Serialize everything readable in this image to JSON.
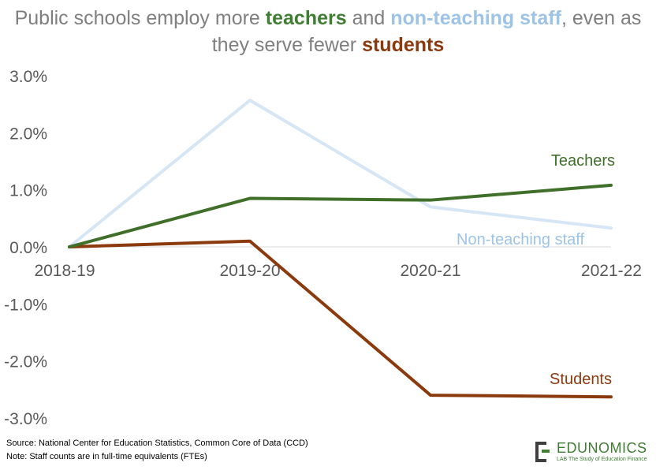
{
  "chart_data": {
    "type": "line",
    "title_parts": [
      {
        "text": "Public schools employ more ",
        "style": "plain"
      },
      {
        "text": "teachers",
        "style": "teal"
      },
      {
        "text": " and ",
        "style": "plain"
      },
      {
        "text": "non-teaching staff",
        "style": "blue"
      },
      {
        "text": ", even as they serve fewer ",
        "style": "plain"
      },
      {
        "text": "students",
        "style": "brown"
      }
    ],
    "categories": [
      "2018-19",
      "2019-20",
      "2020-21",
      "2021-22"
    ],
    "series": [
      {
        "name": "Teachers",
        "color": "#3f6f29",
        "values": [
          0.0,
          0.85,
          0.82,
          1.08
        ]
      },
      {
        "name": "Non-teaching staff",
        "color": "#d6e6f5",
        "values": [
          0.0,
          2.57,
          0.7,
          0.33
        ]
      },
      {
        "name": "Students",
        "color": "#8b3a0e",
        "values": [
          0.0,
          0.1,
          -2.6,
          -2.63
        ]
      }
    ],
    "series_label_colors": {
      "Teachers": "#3f6f29",
      "Non-teaching staff": "#9dc3e6",
      "Students": "#8b3a0e"
    },
    "y_ticks": [
      "3.0%",
      "2.0%",
      "1.0%",
      "0.0%",
      "-1.0%",
      "-2.0%",
      "-3.0%"
    ],
    "y_tick_values": [
      3,
      2,
      1,
      0,
      -1,
      -2,
      -3
    ],
    "ylim": [
      -3,
      3
    ],
    "grid": false,
    "legend": "inline labels"
  },
  "footer": {
    "source": "Source: National Center for Education Statistics, Common Core of Data (CCD)",
    "note": "Note: Staff counts are in full-time equivalents (FTEs)"
  },
  "logo": {
    "name": "EDUNOMICS",
    "tagline": "LAB The Study of Education Finance",
    "icon": "edunomics-logo-icon"
  }
}
